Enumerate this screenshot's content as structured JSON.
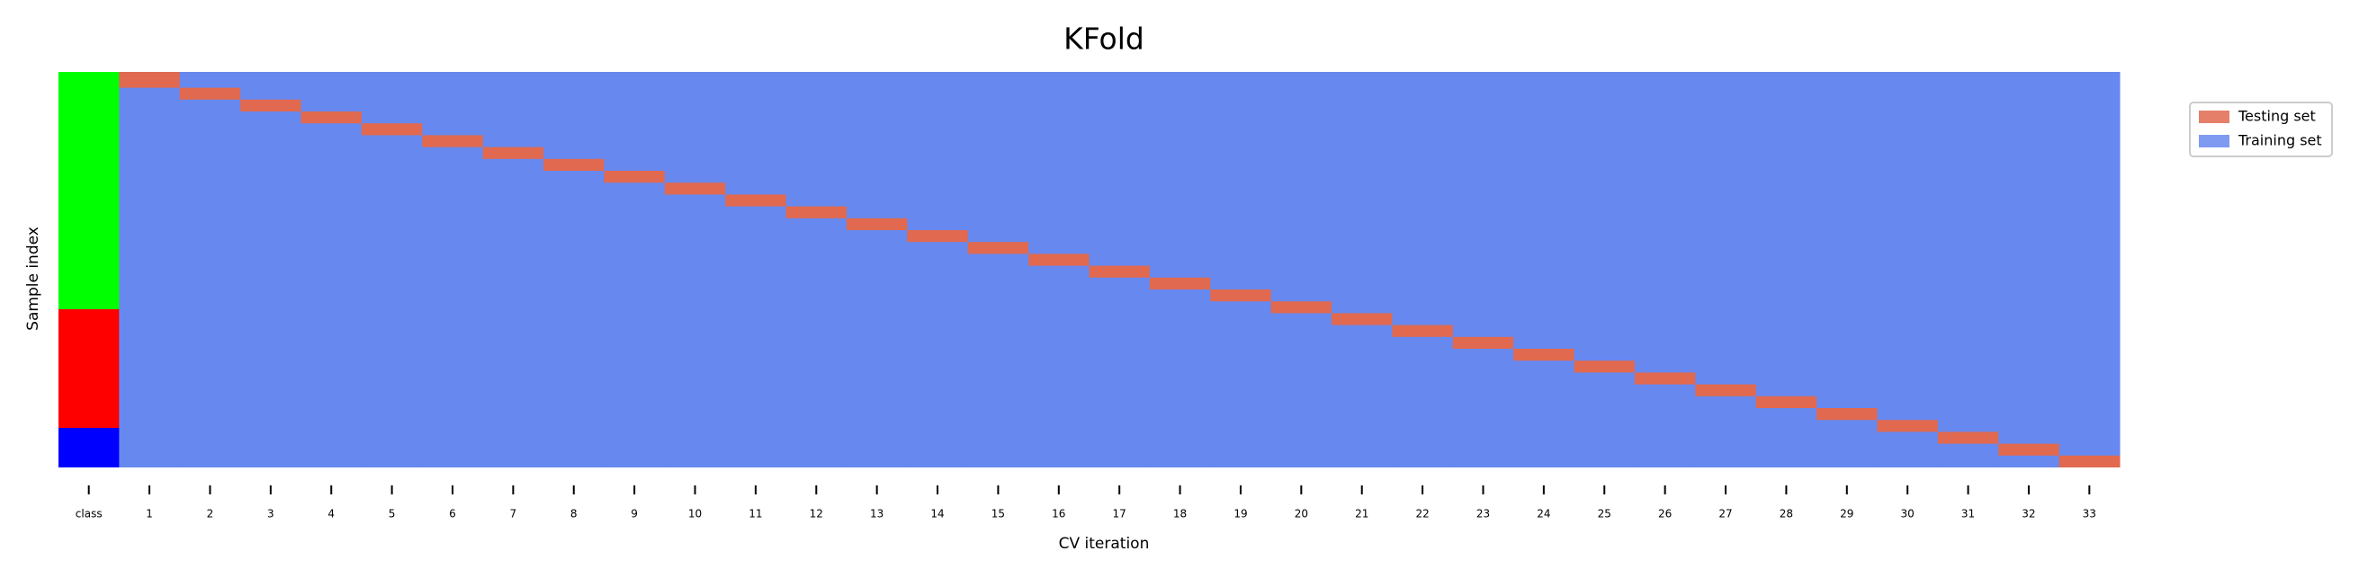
{
  "chart_data": {
    "type": "cv-split",
    "title": "KFold",
    "x_label": "CV iteration",
    "y_label": "Sample index",
    "categories": [
      "class",
      "1",
      "2",
      "3",
      "4",
      "5",
      "6",
      "7",
      "8",
      "9",
      "10",
      "11",
      "12",
      "13",
      "14",
      "15",
      "16",
      "17",
      "18",
      "19",
      "20",
      "21",
      "22",
      "23",
      "24",
      "25",
      "26",
      "27",
      "28",
      "29",
      "30",
      "31",
      "32",
      "33"
    ],
    "n_samples": 100,
    "class_sizes": [
      60,
      30,
      10
    ],
    "class_colors": [
      "#00ff00",
      "#ff0000",
      "#0000ff"
    ],
    "series": [
      {
        "name": "Testing set",
        "color": "#e0694f",
        "test_folds": [
          [
            0,
            4
          ],
          [
            4,
            7
          ],
          [
            7,
            10
          ],
          [
            10,
            13
          ],
          [
            13,
            16
          ],
          [
            16,
            19
          ],
          [
            19,
            22
          ],
          [
            22,
            25
          ],
          [
            25,
            28
          ],
          [
            28,
            31
          ],
          [
            31,
            34
          ],
          [
            34,
            37
          ],
          [
            37,
            40
          ],
          [
            40,
            43
          ],
          [
            43,
            46
          ],
          [
            46,
            49
          ],
          [
            49,
            52
          ],
          [
            52,
            55
          ],
          [
            55,
            58
          ],
          [
            58,
            61
          ],
          [
            61,
            64
          ],
          [
            64,
            67
          ],
          [
            67,
            70
          ],
          [
            70,
            73
          ],
          [
            73,
            76
          ],
          [
            76,
            79
          ],
          [
            79,
            82
          ],
          [
            82,
            85
          ],
          [
            85,
            88
          ],
          [
            88,
            91
          ],
          [
            91,
            94
          ],
          [
            94,
            97
          ],
          [
            97,
            100
          ]
        ]
      },
      {
        "name": "Training set",
        "color": "#6788ee"
      }
    ],
    "legend": "upper right outside"
  }
}
